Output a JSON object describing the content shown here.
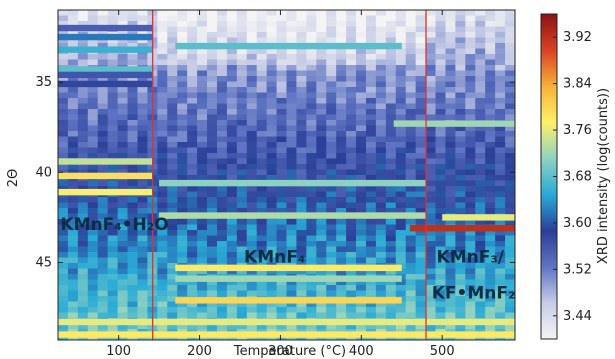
{
  "chart_data": {
    "type": "heatmap",
    "xlabel": "Temperature (°C)",
    "ylabel": "2Θ",
    "colorbar_label": "XRD intensity (log(counts))",
    "xlim": [
      25,
      590
    ],
    "ylim": [
      49.3,
      31.0
    ],
    "x_ticks": [
      100,
      200,
      300,
      400,
      500
    ],
    "y_ticks": [
      35,
      40,
      45
    ],
    "colorbar_ticks": [
      3.44,
      3.52,
      3.6,
      3.68,
      3.76,
      3.84,
      3.92
    ],
    "colorbar_range": [
      3.4,
      3.96
    ],
    "colormap": [
      "#f4f4f4",
      "#c7cce6",
      "#5f74c2",
      "#2b3f98",
      "#29aad6",
      "#8fd2c0",
      "#fff06a",
      "#f7b03a",
      "#d94125",
      "#8a1414"
    ],
    "transition_lines": [
      {
        "temperature": 142,
        "color": "#e03030"
      },
      {
        "temperature": 480,
        "color": "#e03030"
      }
    ],
    "annotations": [
      {
        "text": "KMnF₄•H₂O",
        "x": 28,
        "y": 43.2
      },
      {
        "text": "KMnF₄",
        "x": 255,
        "y": 45.0
      },
      {
        "text": "KMnF₃/",
        "x": 493,
        "y": 45.0
      },
      {
        "text": "KF•MnF₂",
        "x": 487,
        "y": 47.0
      }
    ],
    "peaks": [
      {
        "two_theta": 32.0,
        "t_start": 25,
        "t_end": 142,
        "level": 3.55
      },
      {
        "two_theta": 32.5,
        "t_start": 25,
        "t_end": 142,
        "level": 3.62
      },
      {
        "two_theta": 33.2,
        "t_start": 25,
        "t_end": 142,
        "level": 3.66
      },
      {
        "two_theta": 33.0,
        "t_start": 170,
        "t_end": 450,
        "level": 3.68
      },
      {
        "two_theta": 34.3,
        "t_start": 25,
        "t_end": 142,
        "level": 3.68
      },
      {
        "two_theta": 34.6,
        "t_start": 25,
        "t_end": 142,
        "level": 3.56
      },
      {
        "two_theta": 35.1,
        "t_start": 25,
        "t_end": 142,
        "level": 3.58
      },
      {
        "two_theta": 37.3,
        "t_start": 440,
        "t_end": 590,
        "level": 3.72
      },
      {
        "two_theta": 39.4,
        "t_start": 25,
        "t_end": 142,
        "level": 3.74
      },
      {
        "two_theta": 40.2,
        "t_start": 25,
        "t_end": 142,
        "level": 3.79
      },
      {
        "two_theta": 41.1,
        "t_start": 25,
        "t_end": 142,
        "level": 3.77
      },
      {
        "two_theta": 40.6,
        "t_start": 150,
        "t_end": 480,
        "level": 3.71
      },
      {
        "two_theta": 42.4,
        "t_start": 150,
        "t_end": 480,
        "level": 3.73
      },
      {
        "two_theta": 42.5,
        "t_start": 500,
        "t_end": 590,
        "level": 3.76
      },
      {
        "two_theta": 43.1,
        "t_start": 460,
        "t_end": 590,
        "level": 3.92
      },
      {
        "two_theta": 45.3,
        "t_start": 170,
        "t_end": 450,
        "level": 3.78
      },
      {
        "two_theta": 45.9,
        "t_start": 170,
        "t_end": 450,
        "level": 3.72
      },
      {
        "two_theta": 47.1,
        "t_start": 170,
        "t_end": 450,
        "level": 3.8
      },
      {
        "two_theta": 48.3,
        "t_start": 25,
        "t_end": 590,
        "level": 3.76
      },
      {
        "two_theta": 49.0,
        "t_start": 25,
        "t_end": 590,
        "level": 3.78
      }
    ]
  }
}
